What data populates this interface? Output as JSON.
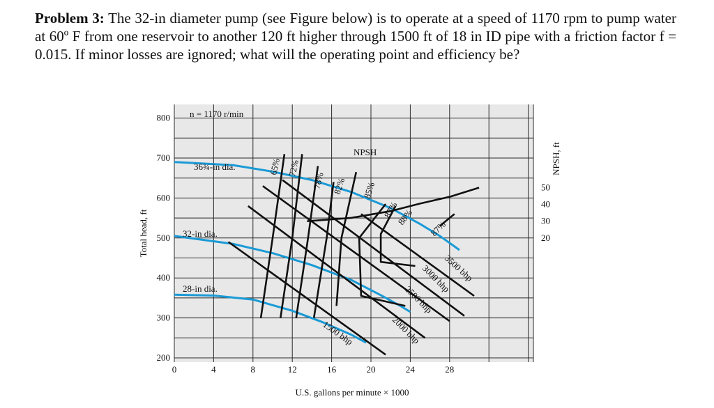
{
  "problem": {
    "heading": "Problem 3:",
    "text": "The 32-in diameter pump (see Figure below) is to operate at a speed of 1170 rpm to pump water at 60º F from one reservoir to another 120 ft higher through 1500 ft of 18 in ID pipe with a friction factor f = 0.015. If minor losses are ignored; what will the operating point and efficiency be?"
  },
  "colors": {
    "grid_bg": "#e8e8e8",
    "grid_line": "#2a2a2a",
    "head_curve": "#1a9ad6",
    "line": "#111111"
  },
  "chart_data": {
    "type": "line",
    "title": "",
    "speed_label": "n = 1170 r/min",
    "xlabel": "U.S. gallons per minute × 1000",
    "ylabel": "Total head, ft",
    "ylabel_right": "NPSH, ft",
    "xlim": [
      0,
      36
    ],
    "ylim": [
      200,
      820
    ],
    "x_ticks": [
      0,
      4,
      8,
      12,
      16,
      20,
      24,
      28
    ],
    "y_ticks": [
      200,
      300,
      400,
      500,
      600,
      700,
      800
    ],
    "npsh_ticks": [
      20,
      30,
      40,
      50
    ],
    "npsh_range": [
      20,
      50
    ],
    "grid": true,
    "head_curves": [
      {
        "name": "36¾-in dia.",
        "x": [
          0,
          6,
          10,
          14,
          18,
          22,
          25,
          27,
          29
        ],
        "y": [
          690,
          682,
          666,
          645,
          615,
          575,
          535,
          505,
          470
        ]
      },
      {
        "name": "32-in dia.",
        "x": [
          0,
          6,
          10,
          14,
          18,
          21,
          23,
          24
        ],
        "y": [
          505,
          485,
          462,
          432,
          395,
          357,
          330,
          315
        ]
      },
      {
        "name": "28-in dia.",
        "x": [
          0,
          4,
          8,
          12,
          15,
          18,
          19.5
        ],
        "y": [
          358,
          356,
          346,
          318,
          290,
          258,
          238
        ]
      }
    ],
    "npsh_curve": {
      "name": "NPSH",
      "x": [
        13.5,
        18,
        22,
        25,
        28,
        31
      ],
      "y": [
        30,
        32,
        36,
        40.5,
        44.5,
        50
      ]
    },
    "power_lines": [
      {
        "name": "1500 bhp",
        "x": [
          5.5,
          21.5
        ],
        "y": [
          490,
          208
        ]
      },
      {
        "name": "2000 bhp",
        "x": [
          7.5,
          25.5
        ],
        "y": [
          580,
          250
        ]
      },
      {
        "name": "2500 bhp",
        "x": [
          9,
          28
        ],
        "y": [
          630,
          292
        ]
      },
      {
        "name": "3000 bhp",
        "x": [
          11,
          29.5
        ],
        "y": [
          645,
          305
        ]
      },
      {
        "name": "3500 bhp",
        "x": [
          19,
          30.5
        ],
        "y": [
          560,
          355
        ]
      }
    ],
    "efficiency_contours": [
      {
        "name": "65%",
        "points": [
          [
            8.8,
            300
          ],
          [
            10,
            500
          ],
          [
            11.2,
            710
          ]
        ]
      },
      {
        "name": "72%",
        "points": [
          [
            10.8,
            300
          ],
          [
            12,
            500
          ],
          [
            13,
            710
          ]
        ]
      },
      {
        "name": "78%",
        "points": [
          [
            12.4,
            300
          ],
          [
            13.6,
            500
          ],
          [
            14.6,
            680
          ]
        ]
      },
      {
        "name": "82%",
        "points": [
          [
            14.2,
            300
          ],
          [
            15.5,
            500
          ],
          [
            16.2,
            640
          ]
        ]
      },
      {
        "name": "85%",
        "points": [
          [
            16.5,
            330
          ],
          [
            17,
            500
          ],
          [
            18.5,
            665
          ]
        ]
      },
      {
        "name": "87%",
        "points": [
          [
            23.5,
            330
          ],
          [
            19,
            355
          ],
          [
            18.8,
            500
          ],
          [
            21.5,
            585
          ]
        ]
      },
      {
        "name": "88%",
        "points": [
          [
            24.5,
            430
          ],
          [
            21,
            440
          ],
          [
            21,
            510
          ],
          [
            22.5,
            580
          ]
        ]
      },
      {
        "name": "87%",
        "points": [
          [
            27,
            530
          ],
          [
            28.5,
            560
          ]
        ]
      }
    ],
    "labels": {
      "npsh": "NPSH",
      "bhp": [
        "1500 bhp",
        "2000 bhp",
        "2500 bhp",
        "3000 bhp",
        "3500 bhp"
      ],
      "eff": [
        "65%",
        "72%",
        "78%",
        "82%",
        "85%",
        "87%",
        "88%",
        "87%"
      ]
    }
  }
}
